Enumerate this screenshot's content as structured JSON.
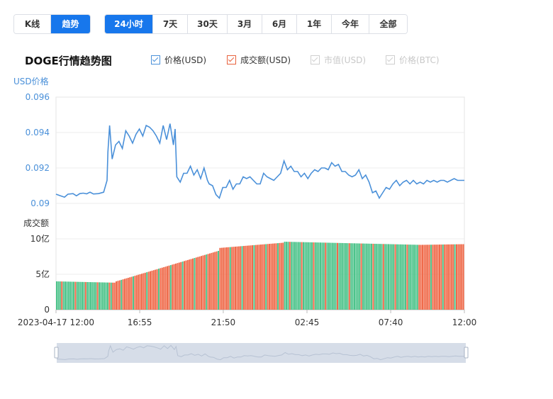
{
  "toolbar": {
    "mode_tabs": [
      {
        "label": "K线",
        "active": false
      },
      {
        "label": "趋势",
        "active": true
      }
    ],
    "range_tabs": [
      {
        "label": "24小时",
        "active": true
      },
      {
        "label": "7天",
        "active": false
      },
      {
        "label": "30天",
        "active": false
      },
      {
        "label": "3月",
        "active": false
      },
      {
        "label": "6月",
        "active": false
      },
      {
        "label": "1年",
        "active": false
      },
      {
        "label": "今年",
        "active": false
      },
      {
        "label": "全部",
        "active": false
      }
    ]
  },
  "colors": {
    "accent": "#1777ec",
    "price_line": "#4a90d9",
    "up_bar": "#4cc38a",
    "down_bar": "#ef6a4a",
    "navigator": "#d6dde8"
  },
  "chart_data": {
    "type": "line",
    "title": "DOGE行情趋势图",
    "legend": [
      {
        "label": "价格(USD)",
        "enabled": true,
        "color": "#4a90d9"
      },
      {
        "label": "成交额(USD)",
        "enabled": true,
        "color": "#e8613c"
      },
      {
        "label": "市值(USD)",
        "enabled": false,
        "color": "#cfcfcf"
      },
      {
        "label": "价格(BTC)",
        "enabled": false,
        "color": "#cfcfcf"
      }
    ],
    "price_axis": {
      "label": "USD价格",
      "ticks": [
        "0.096",
        "0.094",
        "0.092",
        "0.09"
      ],
      "ylim": [
        0.09,
        0.096
      ]
    },
    "volume_axis": {
      "label": "成交额",
      "ticks": [
        "10亿",
        "5亿",
        "0"
      ],
      "ylim": [
        0,
        1000000000
      ]
    },
    "x_ticks": [
      "2023-04-17 12:00",
      "16:55",
      "21:50",
      "02:45",
      "07:40",
      "12:00"
    ],
    "price_series": {
      "name": "价格(USD)",
      "x": [
        0,
        0.2,
        0.5,
        0.7,
        1.0,
        1.2,
        1.4,
        1.6,
        1.8,
        2.0,
        2.2,
        2.5,
        2.8,
        3.0,
        3.05,
        3.15,
        3.3,
        3.5,
        3.7,
        3.9,
        4.1,
        4.3,
        4.5,
        4.7,
        4.9,
        5.1,
        5.3,
        5.5,
        5.7,
        5.9,
        6.1,
        6.3,
        6.5,
        6.7,
        6.9,
        7.0,
        7.1,
        7.3,
        7.5,
        7.7,
        7.9,
        8.1,
        8.3,
        8.5,
        8.7,
        8.9,
        9.0,
        9.2,
        9.4,
        9.6,
        9.8,
        10.0,
        10.2,
        10.4,
        10.6,
        10.8,
        11.0,
        11.2,
        11.4,
        11.6,
        11.8,
        12.0,
        12.2,
        12.4,
        12.6,
        12.8,
        13.0,
        13.2,
        13.4,
        13.6,
        13.8,
        14.0,
        14.2,
        14.4,
        14.6,
        14.8,
        15.0,
        15.2,
        15.4,
        15.6,
        15.8,
        16.0,
        16.2,
        16.4,
        16.6,
        16.8,
        17.0,
        17.2,
        17.4,
        17.6,
        17.8,
        18.0,
        18.2,
        18.4,
        18.6,
        18.8,
        19.0,
        19.2,
        19.4,
        19.6,
        19.8,
        20.0,
        20.2,
        20.4,
        20.6,
        20.8,
        21.0,
        21.2,
        21.4,
        21.6,
        21.8,
        22.0,
        22.2,
        22.4,
        22.6,
        22.8,
        23.0,
        23.2,
        23.4,
        23.6,
        23.8,
        24.0
      ],
      "values": [
        0.09052,
        0.09045,
        0.09035,
        0.09052,
        0.09055,
        0.09043,
        0.09055,
        0.09058,
        0.09054,
        0.09063,
        0.09053,
        0.09055,
        0.09063,
        0.0913,
        0.0929,
        0.0944,
        0.0925,
        0.0933,
        0.0935,
        0.0931,
        0.0941,
        0.0938,
        0.0934,
        0.0939,
        0.0942,
        0.0938,
        0.0944,
        0.0943,
        0.0941,
        0.0938,
        0.0934,
        0.0944,
        0.0936,
        0.0945,
        0.0933,
        0.0942,
        0.0915,
        0.0912,
        0.0917,
        0.0917,
        0.0921,
        0.0916,
        0.0919,
        0.0914,
        0.092,
        0.0913,
        0.0911,
        0.091,
        0.0905,
        0.0903,
        0.0909,
        0.0909,
        0.0913,
        0.0908,
        0.0911,
        0.0911,
        0.0915,
        0.0914,
        0.0915,
        0.0913,
        0.0911,
        0.0911,
        0.0917,
        0.0915,
        0.0914,
        0.0913,
        0.0915,
        0.0917,
        0.0924,
        0.0919,
        0.0921,
        0.0918,
        0.0918,
        0.0915,
        0.0917,
        0.0914,
        0.0917,
        0.0919,
        0.0918,
        0.092,
        0.092,
        0.0919,
        0.0923,
        0.0921,
        0.0922,
        0.0918,
        0.0918,
        0.0916,
        0.0915,
        0.0916,
        0.0919,
        0.0914,
        0.0916,
        0.0912,
        0.0906,
        0.0907,
        0.0903,
        0.0906,
        0.0909,
        0.0908,
        0.0911,
        0.0913,
        0.091,
        0.0912,
        0.0913,
        0.0911,
        0.0913,
        0.0911,
        0.0912,
        0.0911,
        0.0913,
        0.0912,
        0.0913,
        0.0912,
        0.0913,
        0.0913,
        0.0912,
        0.0913,
        0.0914,
        0.0913,
        0.0913,
        0.0913
      ]
    },
    "volume_series": {
      "name": "成交额(USD)",
      "segments": [
        {
          "from": 0,
          "to": 3.3,
          "start": 400000000,
          "end": 382000000,
          "color": "up"
        },
        {
          "from": 3.3,
          "to": 3.5,
          "start": 382000000,
          "end": 382000000,
          "color": "down"
        },
        {
          "from": 3.5,
          "to": 9.5,
          "start": 400000000,
          "end": 830000000,
          "color": "down"
        },
        {
          "from": 9.5,
          "to": 13.3,
          "start": 870000000,
          "end": 945000000,
          "color": "down"
        },
        {
          "from": 13.3,
          "to": 21.4,
          "start": 960000000,
          "end": 915000000,
          "color": "up"
        },
        {
          "from": 21.4,
          "to": 24,
          "start": 915000000,
          "end": 925000000,
          "color": "down"
        }
      ]
    }
  }
}
